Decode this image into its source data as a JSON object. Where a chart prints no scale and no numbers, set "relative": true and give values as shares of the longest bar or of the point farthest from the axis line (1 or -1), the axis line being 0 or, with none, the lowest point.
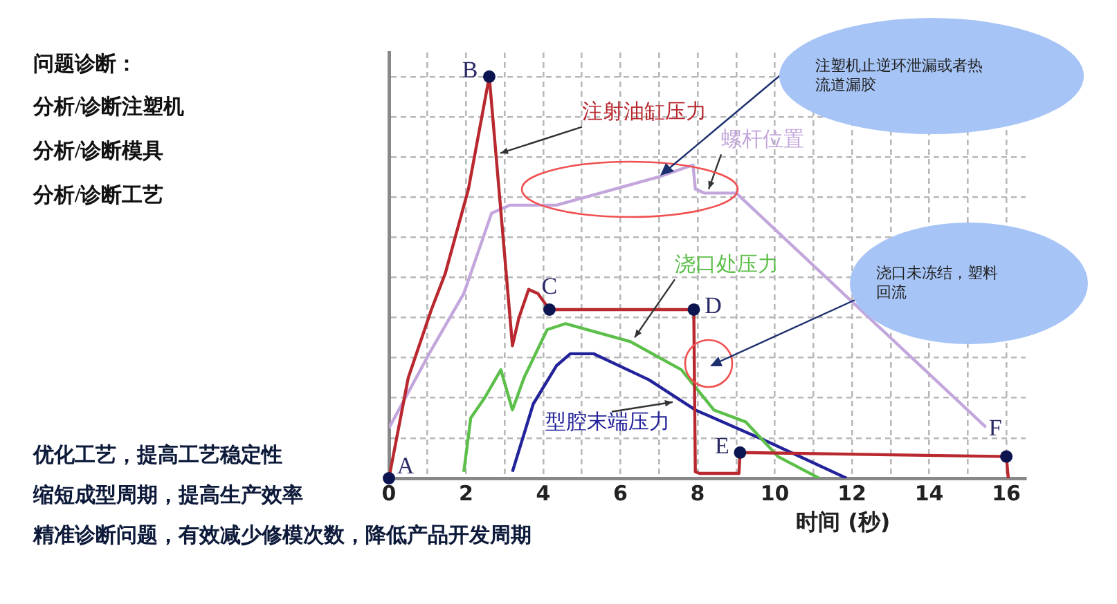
{
  "chart_data": {
    "type": "line",
    "title": "问题诊断：",
    "xlabel": "时间 (秒)",
    "relative": true,
    "xlim": [
      0,
      16.5
    ],
    "xticks": [
      0,
      {
        "value": 1,
        "label": null
      },
      2,
      {
        "value": 3,
        "label": null
      },
      4,
      {
        "value": 5,
        "label": null
      },
      6,
      {
        "value": 7,
        "label": null
      },
      8,
      {
        "value": 9,
        "label": null
      },
      10,
      {
        "value": 11,
        "label": null
      },
      12,
      {
        "value": 13,
        "label": null
      },
      14,
      {
        "value": 15,
        "label": null
      },
      16
    ],
    "grid": true,
    "legend": false,
    "marker": "none",
    "line_style": "solid",
    "series": [
      {
        "name": "注射油缸压力",
        "color": "#b8282e",
        "x": [
          0,
          0.5,
          1.1,
          1.46,
          2.06,
          2.6,
          3.2,
          3.37,
          3.62,
          3.86,
          4.16,
          7.9,
          7.94,
          8.05,
          9.07,
          9.1,
          16,
          16.05
        ],
        "values": [
          0,
          0.25,
          0.42,
          0.51,
          0.72,
          1,
          0.33,
          0.4,
          0.47,
          0.46,
          0.42,
          0.42,
          0.016,
          0.012,
          0.012,
          0.064,
          0.054,
          0
        ]
      },
      {
        "name": "螺杆位置",
        "color": "#c3a6dc",
        "x": [
          0,
          1.1,
          1.94,
          2.66,
          3.14,
          4.34,
          6.98,
          7.88,
          7.94,
          8.18,
          9,
          15.47
        ],
        "values": [
          0.125,
          0.32,
          0.46,
          0.66,
          0.68,
          0.68,
          0.75,
          0.78,
          0.72,
          0.71,
          0.71,
          0.127
        ]
      },
      {
        "name": "浇口处压力",
        "color": "#5cbf4a",
        "x": [
          1.94,
          2.12,
          2.48,
          2.9,
          3.2,
          3.5,
          4.1,
          4.58,
          6.26,
          7.58,
          8.42,
          9.25,
          10.08,
          11.15
        ],
        "values": [
          0.016,
          0.15,
          0.2,
          0.27,
          0.17,
          0.25,
          0.37,
          0.385,
          0.34,
          0.27,
          0.17,
          0.14,
          0.054,
          0
        ]
      },
      {
        "name": "型腔末端压力",
        "color": "#22229a",
        "x": [
          3.2,
          3.74,
          4.34,
          4.7,
          5.3,
          6.74,
          7.94,
          9.84,
          11.86
        ],
        "values": [
          0.016,
          0.185,
          0.28,
          0.31,
          0.31,
          0.245,
          0.17,
          0.09,
          0
        ]
      }
    ],
    "annotations": [
      "分析/诊断注塑机",
      "分析/诊断模具",
      "分析/诊断工艺",
      "优化工艺，提高工艺稳定性",
      "缩短成型周期，提高生产效率",
      "精准诊断问题，有效减少修模次数，降低产品开发周期",
      {
        "text": "A",
        "x": 0,
        "y": 0
      },
      {
        "text": "B",
        "x": 2.6,
        "y": 1
      },
      {
        "text": "C",
        "x": 4.16,
        "y": 0.42
      },
      {
        "text": "D",
        "x": 7.9,
        "y": 0.42
      },
      {
        "text": "E",
        "x": 9.1,
        "y": 0.064
      },
      {
        "text": "F",
        "x": 16,
        "y": 0.054
      },
      "注塑机止逆环泄漏或者热流道漏胶",
      "浇口未冻结，塑料回流"
    ]
  }
}
